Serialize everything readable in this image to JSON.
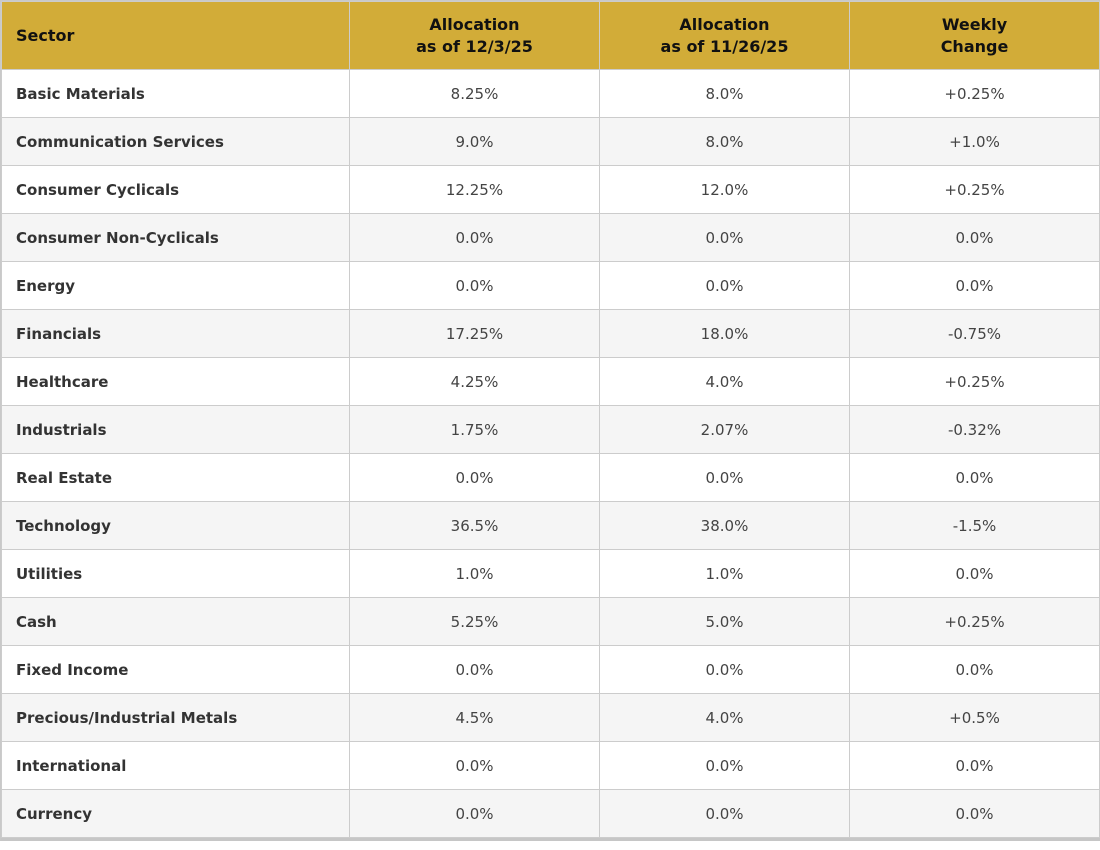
{
  "chart_data": {
    "type": "table",
    "columns": [
      {
        "label": "Sector",
        "lines": [
          "Sector"
        ]
      },
      {
        "label": "Allocation as of 12/3/25",
        "lines": [
          "Allocation",
          "as of 12/3/25"
        ]
      },
      {
        "label": "Allocation as of 11/26/25",
        "lines": [
          "Allocation",
          "as of 11/26/25"
        ]
      },
      {
        "label": "Weekly Change",
        "lines": [
          "Weekly",
          "Change"
        ]
      }
    ],
    "rows": [
      {
        "sector": "Basic Materials",
        "alloc_current": "8.25%",
        "alloc_previous": "8.0%",
        "weekly_change": "+0.25%"
      },
      {
        "sector": "Communication Services",
        "alloc_current": "9.0%",
        "alloc_previous": "8.0%",
        "weekly_change": "+1.0%"
      },
      {
        "sector": "Consumer Cyclicals",
        "alloc_current": "12.25%",
        "alloc_previous": "12.0%",
        "weekly_change": "+0.25%"
      },
      {
        "sector": "Consumer Non-Cyclicals",
        "alloc_current": "0.0%",
        "alloc_previous": "0.0%",
        "weekly_change": "0.0%"
      },
      {
        "sector": "Energy",
        "alloc_current": "0.0%",
        "alloc_previous": "0.0%",
        "weekly_change": "0.0%"
      },
      {
        "sector": "Financials",
        "alloc_current": "17.25%",
        "alloc_previous": "18.0%",
        "weekly_change": "-0.75%"
      },
      {
        "sector": "Healthcare",
        "alloc_current": "4.25%",
        "alloc_previous": "4.0%",
        "weekly_change": "+0.25%"
      },
      {
        "sector": "Industrials",
        "alloc_current": "1.75%",
        "alloc_previous": "2.07%",
        "weekly_change": "-0.32%"
      },
      {
        "sector": "Real Estate",
        "alloc_current": "0.0%",
        "alloc_previous": "0.0%",
        "weekly_change": "0.0%"
      },
      {
        "sector": "Technology",
        "alloc_current": "36.5%",
        "alloc_previous": "38.0%",
        "weekly_change": "-1.5%"
      },
      {
        "sector": "Utilities",
        "alloc_current": "1.0%",
        "alloc_previous": "1.0%",
        "weekly_change": "0.0%"
      },
      {
        "sector": "Cash",
        "alloc_current": "5.25%",
        "alloc_previous": "5.0%",
        "weekly_change": "+0.25%"
      },
      {
        "sector": "Fixed Income",
        "alloc_current": "0.0%",
        "alloc_previous": "0.0%",
        "weekly_change": "0.0%"
      },
      {
        "sector": "Precious/Industrial Metals",
        "alloc_current": "4.5%",
        "alloc_previous": "4.0%",
        "weekly_change": "+0.5%"
      },
      {
        "sector": "International",
        "alloc_current": "0.0%",
        "alloc_previous": "0.0%",
        "weekly_change": "0.0%"
      },
      {
        "sector": "Currency",
        "alloc_current": "0.0%",
        "alloc_previous": "0.0%",
        "weekly_change": "0.0%"
      }
    ]
  },
  "colors": {
    "header_bg": "#D2AC38",
    "header_text": "#111111",
    "sector_text": "#333333",
    "value_text": "#444444",
    "row_alt_bg": "#f5f5f5",
    "row_bg": "#ffffff",
    "cell_border": "#cccccc",
    "outer_border": "#c6c6c6"
  }
}
